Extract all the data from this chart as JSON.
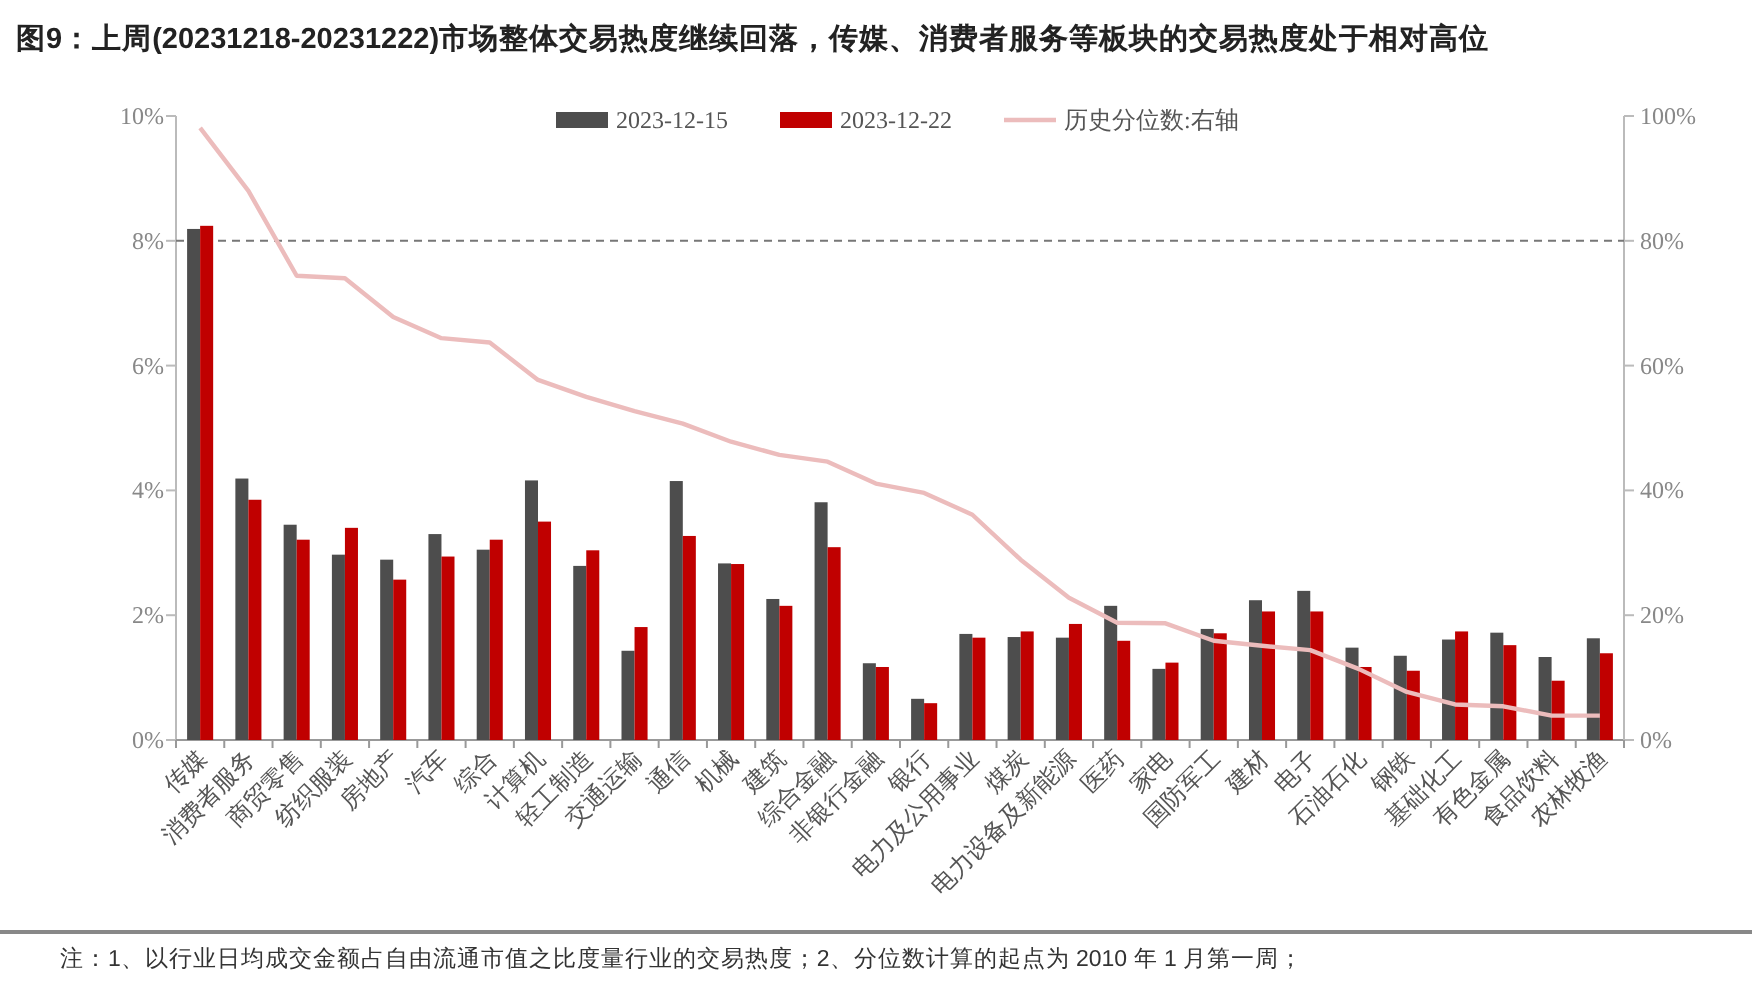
{
  "chart_data": {
    "type": "bar",
    "title": "图9：上周(20231218-20231222)市场整体交易热度继续回落，传媒、消费者服务等板块的交易热度处于相对高位",
    "categories": [
      "传媒",
      "消费者服务",
      "商贸零售",
      "纺织服装",
      "房地产",
      "汽车",
      "综合",
      "计算机",
      "轻工制造",
      "交通运输",
      "通信",
      "机械",
      "建筑",
      "综合金融",
      "非银行金融",
      "银行",
      "电力及公用事业",
      "煤炭",
      "电力设备及新能源",
      "医药",
      "家电",
      "国防军工",
      "建材",
      "电子",
      "石油石化",
      "钢铁",
      "基础化工",
      "有色金属",
      "食品饮料",
      "农林牧渔"
    ],
    "series": [
      {
        "name": "2023-12-15",
        "color": "#4d4d4d",
        "values": [
          8.19,
          4.19,
          3.45,
          2.97,
          2.89,
          3.3,
          3.05,
          4.16,
          2.79,
          1.43,
          4.15,
          2.83,
          2.26,
          3.81,
          1.23,
          0.66,
          1.7,
          1.65,
          1.64,
          2.15,
          1.14,
          1.78,
          2.24,
          2.39,
          1.48,
          1.35,
          1.61,
          1.72,
          1.33,
          1.63
        ]
      },
      {
        "name": "2023-12-22",
        "color": "#c00000",
        "values": [
          8.24,
          3.85,
          3.21,
          3.4,
          2.57,
          2.94,
          3.21,
          3.5,
          3.04,
          1.81,
          3.27,
          2.82,
          2.15,
          3.09,
          1.17,
          0.59,
          1.64,
          1.74,
          1.86,
          1.59,
          1.24,
          1.71,
          2.06,
          2.06,
          1.17,
          1.11,
          1.74,
          1.52,
          0.95,
          1.39
        ]
      },
      {
        "name": "历史分位数:右轴",
        "type": "line",
        "axis": "y2",
        "color": "#ecbcbc",
        "values": [
          98.1,
          88.0,
          74.4,
          74.0,
          67.8,
          64.4,
          63.7,
          57.7,
          55.0,
          52.7,
          50.7,
          47.8,
          45.7,
          44.6,
          41.1,
          39.6,
          36.1,
          28.9,
          22.8,
          18.8,
          18.7,
          15.9,
          15.1,
          14.4,
          11.4,
          7.7,
          5.7,
          5.4,
          3.9,
          3.9
        ]
      }
    ],
    "ylim": [
      0,
      10
    ],
    "yticks": [
      {
        "value": 0,
        "label": "0%"
      },
      {
        "value": 2,
        "label": "2%"
      },
      {
        "value": 4,
        "label": "4%"
      },
      {
        "value": 6,
        "label": "6%"
      },
      {
        "value": 8,
        "label": "8%"
      },
      {
        "value": 10,
        "label": "10%"
      }
    ],
    "y2lim": [
      0,
      100
    ],
    "y2ticks": [
      {
        "value": 0,
        "label": "0%"
      },
      {
        "value": 20,
        "label": "20%"
      },
      {
        "value": 40,
        "label": "40%"
      },
      {
        "value": 60,
        "label": "60%"
      },
      {
        "value": 80,
        "label": "80%"
      },
      {
        "value": 100,
        "label": "100%"
      }
    ],
    "ref_lines": [
      {
        "axis": "y",
        "value": 8,
        "color": "#777777",
        "line_style": "dashed"
      }
    ],
    "legend": "top",
    "annotations": [
      "注：1、以行业日均成交金额占自由流通市值之比度量行业的交易热度；2、分位数计算的起点为 2010 年 1 月第一周；"
    ]
  }
}
